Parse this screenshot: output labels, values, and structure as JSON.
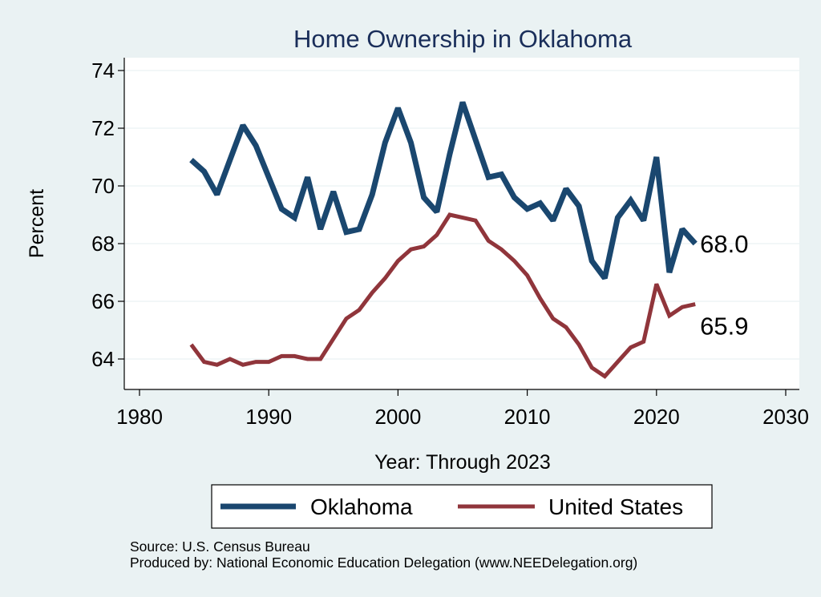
{
  "chart_data": {
    "type": "line",
    "title": "Home Ownership in Oklahoma",
    "xlabel": "Year: Through 2023",
    "ylabel": "Percent",
    "xlim": [
      1980,
      2030
    ],
    "ylim": [
      63.2,
      74.2
    ],
    "xticks": [
      1980,
      1990,
      2000,
      2010,
      2020,
      2030
    ],
    "yticks": [
      64,
      66,
      68,
      70,
      72,
      74
    ],
    "grid": true,
    "legend_position": "bottom",
    "x": [
      1984,
      1985,
      1986,
      1987,
      1988,
      1989,
      1990,
      1991,
      1992,
      1993,
      1994,
      1995,
      1996,
      1997,
      1998,
      1999,
      2000,
      2001,
      2002,
      2003,
      2004,
      2005,
      2006,
      2007,
      2008,
      2009,
      2010,
      2011,
      2012,
      2013,
      2014,
      2015,
      2016,
      2017,
      2018,
      2019,
      2020,
      2021,
      2022,
      2023
    ],
    "series": [
      {
        "name": "Oklahoma",
        "color": "#1a476f",
        "end_label": "68.0",
        "values": [
          70.9,
          70.5,
          69.7,
          70.9,
          72.1,
          71.4,
          70.3,
          69.2,
          68.9,
          70.3,
          68.5,
          69.8,
          68.4,
          68.5,
          69.7,
          71.5,
          72.7,
          71.5,
          69.6,
          69.1,
          71.1,
          72.9,
          71.6,
          70.3,
          70.4,
          69.6,
          69.2,
          69.4,
          68.8,
          69.9,
          69.3,
          67.4,
          66.8,
          68.9,
          69.5,
          68.8,
          71.0,
          67.0,
          68.5,
          68.0
        ]
      },
      {
        "name": "United States",
        "color": "#90353b",
        "end_label": "65.9",
        "values": [
          64.5,
          63.9,
          63.8,
          64.0,
          63.8,
          63.9,
          63.9,
          64.1,
          64.1,
          64.0,
          64.0,
          64.7,
          65.4,
          65.7,
          66.3,
          66.8,
          67.4,
          67.8,
          67.9,
          68.3,
          69.0,
          68.9,
          68.8,
          68.1,
          67.8,
          67.4,
          66.9,
          66.1,
          65.4,
          65.1,
          64.5,
          63.7,
          63.4,
          63.9,
          64.4,
          64.6,
          66.6,
          65.5,
          65.8,
          65.9
        ]
      }
    ]
  },
  "footer": {
    "source": "Source: U.S. Census Bureau",
    "produced_by": "Produced by: National Economic Education Delegation (www.NEEDelegation.org)"
  }
}
